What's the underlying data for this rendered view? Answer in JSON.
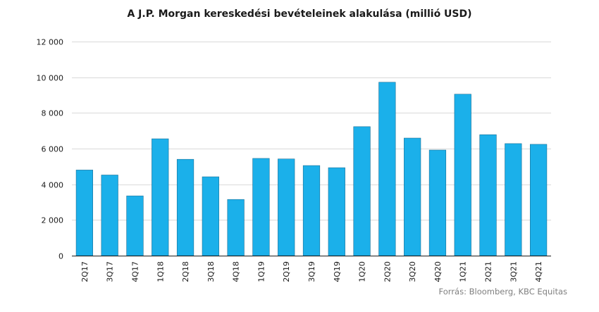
{
  "chart_data": {
    "type": "bar",
    "title": "A J.P. Morgan kereskedési bevételeinek  alakulása (millió USD)",
    "categories": [
      "2Q17",
      "3Q17",
      "4Q17",
      "1Q18",
      "2Q18",
      "3Q18",
      "4Q18",
      "1Q19",
      "2Q19",
      "3Q19",
      "4Q19",
      "1Q20",
      "2Q20",
      "3Q20",
      "4Q20",
      "1Q21",
      "2Q21",
      "3Q21",
      "4Q21"
    ],
    "values": [
      4800,
      4520,
      3350,
      6550,
      5400,
      4420,
      3150,
      5450,
      5420,
      5050,
      4930,
      7230,
      9720,
      6590,
      5920,
      9050,
      6780,
      6280,
      6240
    ],
    "ylim": [
      0,
      12000
    ],
    "yticks": [
      0,
      2000,
      4000,
      6000,
      8000,
      10000,
      12000
    ],
    "ytick_labels": [
      "0",
      "2 000",
      "4 000",
      "6 000",
      "8 000",
      "10 000",
      "12 000"
    ],
    "xlabel": "",
    "ylabel": "",
    "grid": true,
    "bar_color": "#1bb0ea",
    "source": "Forrás: Bloomberg,  KBC Equitas"
  }
}
